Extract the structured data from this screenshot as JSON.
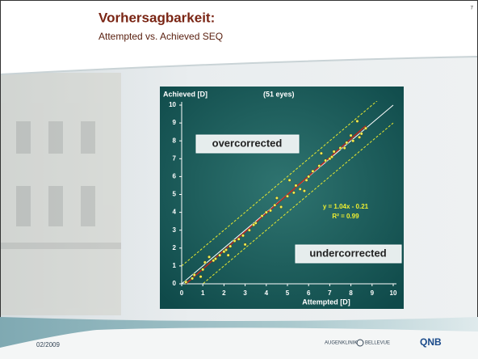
{
  "header": {
    "title": "Vorhersagbarkeit:",
    "subtitle": "Attempted vs. Achieved SEQ",
    "page_number": "7"
  },
  "footer": {
    "date": "02/2009",
    "logo_left": "AUGENKLINIK",
    "logo_middle": "BELLEVUE",
    "logo_right": "QNB"
  },
  "chart_data": {
    "type": "scatter",
    "y_label": "Achieved [D]",
    "subtitle": "(51 eyes)",
    "x_label": "Attempted [D]",
    "annotations": [
      "overcorrected",
      "undercorrected"
    ],
    "trendline": {
      "slope": 1.04,
      "intercept": -0.21,
      "label": "y = 1.04x - 0.21",
      "r2_label": "R² = 0.99"
    },
    "color": "#f0f050",
    "x": [
      0.2,
      0.6,
      0.9,
      1.0,
      1.1,
      1.5,
      1.6,
      1.8,
      2.0,
      2.1,
      2.2,
      2.3,
      2.7,
      2.9,
      3.0,
      3.2,
      3.5,
      3.8,
      4.0,
      4.2,
      4.5,
      4.7,
      5.0,
      5.1,
      5.3,
      5.6,
      5.8,
      5.9,
      6.0,
      6.2,
      6.5,
      6.6,
      7.0,
      7.1,
      7.2,
      7.5,
      7.8,
      8.0,
      8.3,
      8.4,
      8.5,
      8.7,
      0.5,
      1.3,
      2.5,
      3.4,
      4.4,
      5.4,
      6.8,
      7.7,
      8.1
    ],
    "values": [
      0.1,
      0.5,
      0.4,
      0.8,
      1.2,
      1.3,
      1.4,
      1.6,
      1.8,
      1.9,
      1.6,
      2.1,
      2.5,
      2.7,
      2.2,
      3.0,
      3.4,
      3.8,
      4.0,
      4.1,
      4.8,
      4.3,
      4.9,
      5.8,
      5.1,
      5.3,
      5.2,
      5.8,
      6.0,
      6.3,
      6.6,
      7.3,
      7.0,
      7.1,
      7.4,
      7.6,
      7.9,
      8.3,
      9.1,
      8.2,
      8.4,
      8.7,
      0.3,
      1.5,
      2.4,
      3.3,
      4.4,
      5.5,
      6.9,
      7.6,
      8.0
    ],
    "xlim": [
      0,
      10
    ],
    "xticks": [
      0,
      1,
      2,
      3,
      4,
      5,
      6,
      7,
      8,
      9,
      10
    ],
    "ylim": [
      0,
      10
    ],
    "yticks": [
      0,
      1,
      2,
      3,
      4,
      5,
      6,
      7,
      8,
      9,
      10
    ]
  }
}
